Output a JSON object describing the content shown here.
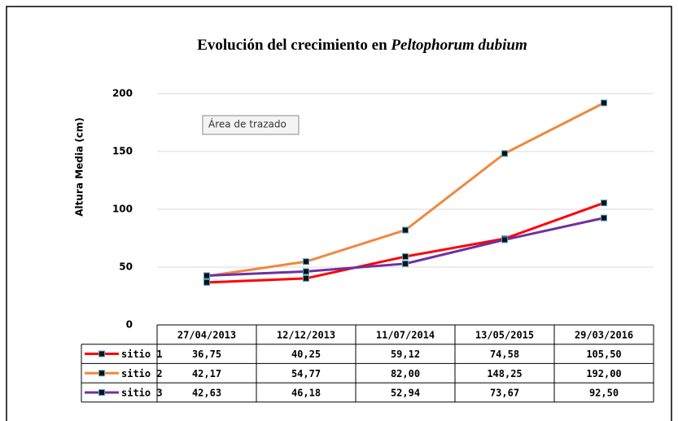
{
  "chart_data": {
    "type": "line",
    "title": "Evolución del crecimiento en",
    "title_italic": "Peltophorum dubium",
    "y_label": "Altura Media (cm)",
    "annotation": "Área de trazado",
    "categories": [
      "27/04/2013",
      "12/12/2013",
      "11/07/2014",
      "13/05/2015",
      "29/03/2016"
    ],
    "series": [
      {
        "name": "sitio 1",
        "color": "#ff0000",
        "values": [
          36.75,
          40.25,
          59.12,
          74.58,
          105.5
        ],
        "value_labels": [
          "36,75",
          "40,25",
          "59,12",
          "74,58",
          "105,50"
        ]
      },
      {
        "name": "sitio 2",
        "color": "#f0883c",
        "values": [
          42.17,
          54.77,
          82.0,
          148.25,
          192.0
        ],
        "value_labels": [
          "42,17",
          "54,77",
          "82,00",
          "148,25",
          "192,00"
        ]
      },
      {
        "name": "sitio 3",
        "color": "#7030a0",
        "values": [
          42.63,
          46.18,
          52.94,
          73.67,
          92.5
        ],
        "value_labels": [
          "42,63",
          "46,18",
          "52,94",
          "73,67",
          "92,50"
        ]
      }
    ],
    "ylim": [
      0,
      200
    ],
    "yticks": [
      0,
      50,
      100,
      150,
      200
    ],
    "grid": true
  }
}
